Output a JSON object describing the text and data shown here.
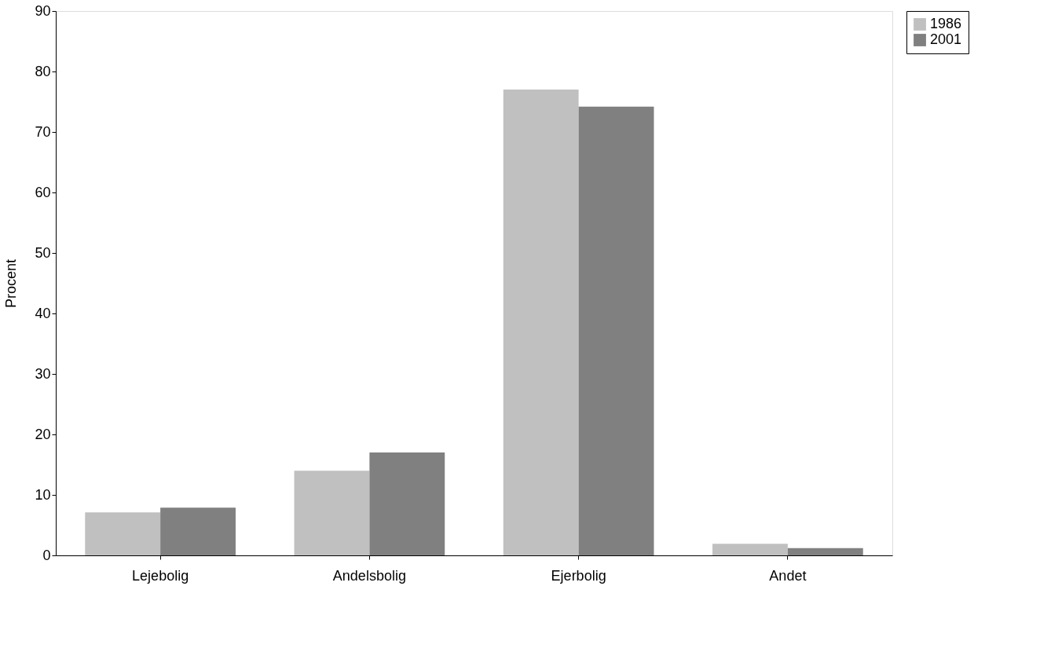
{
  "chart_data": {
    "type": "bar",
    "ylabel": "Procent",
    "categories": [
      "Lejebolig",
      "Andelsbolig",
      "Ejerbolig",
      "Andet"
    ],
    "series": [
      {
        "name": "1986",
        "color": "#c0c0c0",
        "values": [
          7.1,
          14.0,
          77.0,
          1.9
        ]
      },
      {
        "name": "2001",
        "color": "#808080",
        "values": [
          7.9,
          17.0,
          74.2,
          1.2
        ]
      }
    ],
    "ylim": [
      0,
      90
    ],
    "yticks": [
      0,
      10,
      20,
      30,
      40,
      50,
      60,
      70,
      80,
      90
    ],
    "grid": false,
    "legend": "right"
  }
}
